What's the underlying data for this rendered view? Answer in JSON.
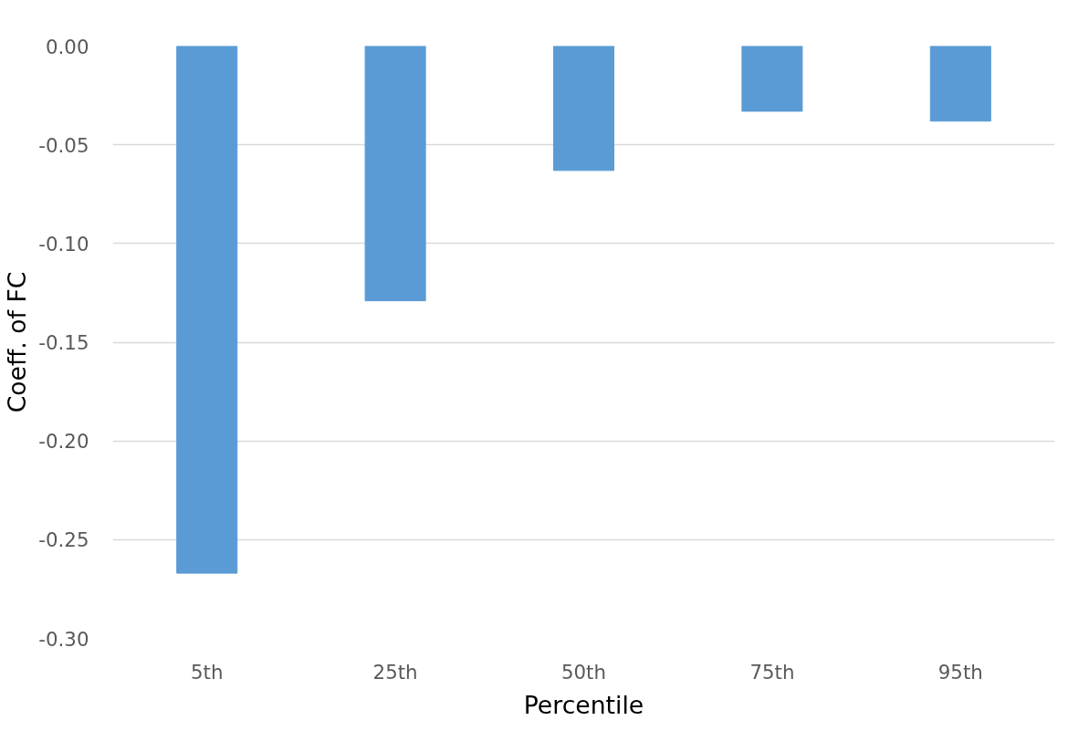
{
  "chart_data": {
    "type": "bar",
    "xlabel": "Percentile",
    "ylabel": "Coeff. of FC",
    "categories": [
      "5th",
      "25th",
      "50th",
      "75th",
      "95th"
    ],
    "values": [
      -0.267,
      -0.129,
      -0.063,
      -0.033,
      -0.038
    ],
    "color": "#5b9bd5",
    "ylim": [
      -0.3,
      0
    ],
    "yticks": [
      {
        "value": 0,
        "label": "0.00"
      },
      {
        "value": -0.05,
        "label": "-0.05"
      },
      {
        "value": -0.1,
        "label": "-0.10"
      },
      {
        "value": -0.15,
        "label": "-0.15"
      },
      {
        "value": -0.2,
        "label": "-0.20"
      },
      {
        "value": -0.25,
        "label": "-0.25"
      },
      {
        "value": -0.3,
        "label": "-0.30"
      }
    ],
    "grid": "y"
  }
}
